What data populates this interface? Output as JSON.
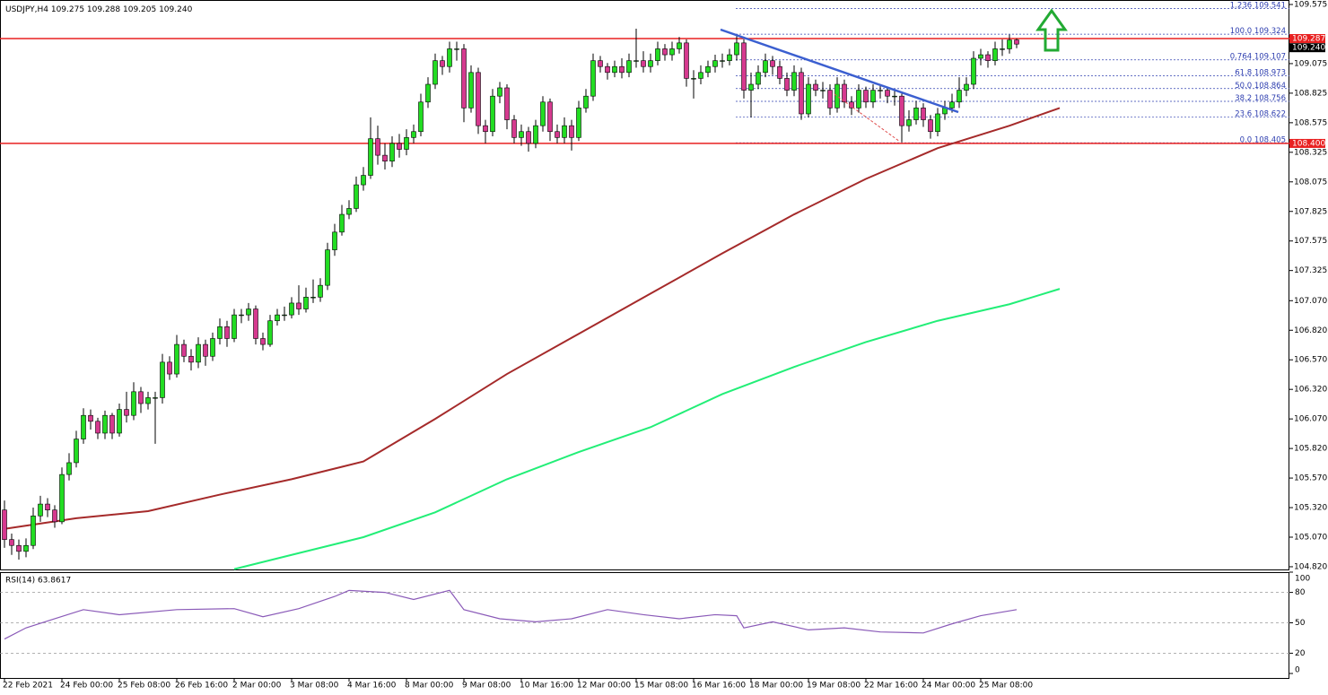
{
  "chart_data": {
    "type": "candlestick",
    "title": "USDJPY,H4",
    "quote": "109.275 109.288 109.205 109.240",
    "categories": [
      "22 Feb 2021",
      null,
      null,
      null,
      null,
      null,
      null,
      null,
      "24 Feb 00:00",
      null,
      null,
      null,
      null,
      null,
      null,
      null,
      "25 Feb 08:00",
      null,
      null,
      null,
      null,
      null,
      null,
      null,
      "26 Feb 16:00",
      null,
      null,
      null,
      null,
      null,
      null,
      null,
      "2 Mar 00:00",
      null,
      null,
      null,
      null,
      null,
      null,
      null,
      "3 Mar 08:00",
      null,
      null,
      null,
      null,
      null,
      null,
      null,
      "4 Mar 16:00",
      null,
      null,
      null,
      null,
      null,
      null,
      null,
      "8 Mar 00:00",
      null,
      null,
      null,
      null,
      null,
      null,
      null,
      "9 Mar 08:00",
      null,
      null,
      null,
      null,
      null,
      null,
      null,
      "10 Mar 16:00",
      null,
      null,
      null,
      null,
      null,
      null,
      null,
      "12 Mar 00:00",
      null,
      null,
      null,
      null,
      null,
      null,
      null,
      "15 Mar 08:00",
      null,
      null,
      null,
      null,
      null,
      null,
      null,
      "16 Mar 16:00",
      null,
      null,
      null,
      null,
      null,
      null,
      null,
      "18 Mar 00:00",
      null,
      null,
      null,
      null,
      null,
      null,
      null,
      "19 Mar 08:00",
      null,
      null,
      null,
      null,
      null,
      null,
      null,
      "22 Mar 16:00",
      null,
      null,
      null,
      null,
      null,
      null,
      null,
      "24 Mar 00:00",
      null,
      null,
      null,
      null,
      null,
      null,
      null,
      "25 Mar 08:00",
      null,
      null,
      null,
      null,
      null
    ],
    "open": [
      105.3,
      105.05,
      105.0,
      104.95,
      105.0,
      105.25,
      105.35,
      105.3,
      105.2,
      105.6,
      105.7,
      105.9,
      106.1,
      106.05,
      105.95,
      106.1,
      105.95,
      106.15,
      106.1,
      106.3,
      106.2,
      106.25,
      106.25,
      106.55,
      106.45,
      106.7,
      106.6,
      106.55,
      106.7,
      106.6,
      106.75,
      106.85,
      106.75,
      106.95,
      106.95,
      107.0,
      106.75,
      106.7,
      106.9,
      106.95,
      106.95,
      107.05,
      107.0,
      107.1,
      107.1,
      107.2,
      107.5,
      107.65,
      107.8,
      107.85,
      108.05,
      108.13,
      108.44,
      108.3,
      108.25,
      108.4,
      108.35,
      108.45,
      108.5,
      108.75,
      108.9,
      109.1,
      109.05,
      109.2,
      109.2,
      108.7,
      109.0,
      108.55,
      108.5,
      108.8,
      108.87,
      108.6,
      108.45,
      108.5,
      108.4,
      108.55,
      108.75,
      108.5,
      108.45,
      108.55,
      108.45,
      108.7,
      108.8,
      109.1,
      109.05,
      109.0,
      109.05,
      109.0,
      109.1,
      109.1,
      109.05,
      109.1,
      109.2,
      109.15,
      109.2,
      109.25,
      108.95,
      108.95,
      109.0,
      109.05,
      109.1,
      109.1,
      109.15,
      109.25,
      108.85,
      108.9,
      109.0,
      109.1,
      109.05,
      108.95,
      108.85,
      109.0,
      108.65,
      108.9,
      108.85,
      108.85,
      108.7,
      108.9,
      108.75,
      108.7,
      108.85,
      108.75,
      108.85,
      108.85,
      108.8,
      108.8,
      108.55,
      108.6,
      108.7,
      108.6,
      108.5,
      108.65,
      108.7,
      108.75,
      108.85,
      108.9,
      109.12,
      109.15,
      109.1,
      109.2,
      109.2,
      109.275
    ],
    "high": [
      105.38,
      105.1,
      105.05,
      105.06,
      105.32,
      105.42,
      105.4,
      105.34,
      105.66,
      105.78,
      105.97,
      106.16,
      106.15,
      106.08,
      106.14,
      106.12,
      106.2,
      106.3,
      106.38,
      106.34,
      106.3,
      106.3,
      106.62,
      106.6,
      106.78,
      106.74,
      106.66,
      106.76,
      106.74,
      106.8,
      106.92,
      106.9,
      107.0,
      107.0,
      107.05,
      107.03,
      106.8,
      106.95,
      107.0,
      107.02,
      107.1,
      107.2,
      107.18,
      107.25,
      107.26,
      107.56,
      107.72,
      107.88,
      107.92,
      108.12,
      108.2,
      108.62,
      108.55,
      108.4,
      108.46,
      108.48,
      108.52,
      108.56,
      108.82,
      108.96,
      109.16,
      109.14,
      109.26,
      109.26,
      109.24,
      109.06,
      109.04,
      108.6,
      108.86,
      108.92,
      108.9,
      108.64,
      108.56,
      108.54,
      108.6,
      108.8,
      108.78,
      108.56,
      108.62,
      108.6,
      108.76,
      108.86,
      109.16,
      109.14,
      109.08,
      109.1,
      109.12,
      109.16,
      109.37,
      109.18,
      109.16,
      109.26,
      109.24,
      109.26,
      109.3,
      109.28,
      109.02,
      109.06,
      109.1,
      109.15,
      109.16,
      109.2,
      109.32,
      109.28,
      109.0,
      109.06,
      109.16,
      109.14,
      109.1,
      109.0,
      109.06,
      109.04,
      108.96,
      108.94,
      108.92,
      108.9,
      108.96,
      108.94,
      108.8,
      108.9,
      108.88,
      108.9,
      108.9,
      108.88,
      108.86,
      108.82,
      108.68,
      108.76,
      108.74,
      108.64,
      108.7,
      108.76,
      108.82,
      108.96,
      108.96,
      109.18,
      109.2,
      109.18,
      109.26,
      109.28,
      109.32,
      109.288
    ],
    "low": [
      104.98,
      104.92,
      104.88,
      104.9,
      104.97,
      105.2,
      105.24,
      105.15,
      105.18,
      105.55,
      105.66,
      105.86,
      105.98,
      105.9,
      105.9,
      105.9,
      105.92,
      106.04,
      106.06,
      106.12,
      106.15,
      105.86,
      106.2,
      106.4,
      106.42,
      106.55,
      106.48,
      106.5,
      106.52,
      106.56,
      106.7,
      106.68,
      106.72,
      106.88,
      106.9,
      106.7,
      106.65,
      106.68,
      106.86,
      106.9,
      106.92,
      106.95,
      106.97,
      107.05,
      107.06,
      107.16,
      107.45,
      107.62,
      107.76,
      107.82,
      108.0,
      108.1,
      108.22,
      108.18,
      108.2,
      108.28,
      108.3,
      108.4,
      108.46,
      108.7,
      108.86,
      108.98,
      109.0,
      109.1,
      108.58,
      108.66,
      108.48,
      108.4,
      108.46,
      108.74,
      108.52,
      108.4,
      108.38,
      108.33,
      108.36,
      108.5,
      108.42,
      108.4,
      108.4,
      108.34,
      108.42,
      108.66,
      108.76,
      109.0,
      108.94,
      108.96,
      108.95,
      108.96,
      109.04,
      109.0,
      109.0,
      109.06,
      109.1,
      109.1,
      109.16,
      108.88,
      108.78,
      108.9,
      108.96,
      109.0,
      109.04,
      109.06,
      109.1,
      108.78,
      108.62,
      108.86,
      108.96,
      108.98,
      108.9,
      108.8,
      108.8,
      108.6,
      108.62,
      108.8,
      108.78,
      108.64,
      108.66,
      108.7,
      108.64,
      108.66,
      108.7,
      108.7,
      108.78,
      108.74,
      108.72,
      108.41,
      108.5,
      108.56,
      108.54,
      108.44,
      108.46,
      108.6,
      108.66,
      108.7,
      108.8,
      108.86,
      109.06,
      109.04,
      109.06,
      109.14,
      109.16,
      109.205
    ],
    "close": [
      105.05,
      105.0,
      104.95,
      105.0,
      105.25,
      105.35,
      105.3,
      105.2,
      105.6,
      105.7,
      105.9,
      106.1,
      106.05,
      105.95,
      106.1,
      105.95,
      106.15,
      106.1,
      106.3,
      106.2,
      106.25,
      106.25,
      106.55,
      106.45,
      106.7,
      106.6,
      106.55,
      106.7,
      106.6,
      106.75,
      106.85,
      106.75,
      106.95,
      106.95,
      107.0,
      106.75,
      106.7,
      106.9,
      106.95,
      106.95,
      107.05,
      107.0,
      107.1,
      107.1,
      107.2,
      107.5,
      107.65,
      107.8,
      107.85,
      108.05,
      108.13,
      108.44,
      108.3,
      108.25,
      108.4,
      108.35,
      108.45,
      108.5,
      108.75,
      108.9,
      109.1,
      109.05,
      109.2,
      109.2,
      108.7,
      109.0,
      108.55,
      108.5,
      108.8,
      108.87,
      108.6,
      108.45,
      108.5,
      108.4,
      108.55,
      108.75,
      108.5,
      108.45,
      108.55,
      108.45,
      108.7,
      108.8,
      109.1,
      109.05,
      109.0,
      109.05,
      109.0,
      109.1,
      109.1,
      109.05,
      109.1,
      109.2,
      109.15,
      109.2,
      109.25,
      108.95,
      108.95,
      109.0,
      109.05,
      109.1,
      109.1,
      109.15,
      109.25,
      108.85,
      108.9,
      109.0,
      109.1,
      109.05,
      108.95,
      108.85,
      109.0,
      108.65,
      108.9,
      108.85,
      108.85,
      108.7,
      108.9,
      108.75,
      108.7,
      108.85,
      108.75,
      108.85,
      108.85,
      108.8,
      108.8,
      108.55,
      108.6,
      108.7,
      108.6,
      108.5,
      108.65,
      108.7,
      108.75,
      108.85,
      108.9,
      109.12,
      109.15,
      109.1,
      109.2,
      109.2,
      109.275,
      109.24
    ],
    "up_color": "#22dd22",
    "down_color": "#d6398f",
    "lines": [
      {
        "color": "#a52a2a",
        "x": [
          0,
          10,
          20,
          30,
          40,
          50,
          60,
          70,
          80,
          90,
          100,
          110,
          120,
          130,
          140,
          147
        ],
        "values": [
          105.14,
          105.23,
          105.29,
          105.43,
          105.56,
          105.71,
          106.07,
          106.45,
          106.79,
          107.13,
          107.47,
          107.8,
          108.1,
          108.36,
          108.55,
          108.7
        ]
      },
      {
        "color": "#22ee77",
        "x": [
          32,
          40,
          50,
          60,
          70,
          80,
          90,
          100,
          110,
          120,
          130,
          140,
          147
        ],
        "values": [
          104.8,
          104.92,
          105.07,
          105.28,
          105.56,
          105.79,
          106.0,
          106.28,
          106.51,
          106.72,
          106.9,
          107.04,
          107.17
        ]
      }
    ],
    "hlines": [
      {
        "value": 109.287,
        "label": "109.287"
      },
      {
        "value": 108.4,
        "label": "108.400"
      }
    ],
    "hline_color": "#e82020",
    "last_price": {
      "value": 109.24,
      "label": "109.240"
    },
    "fib": [
      {
        "ratio": "1.236",
        "price": 109.541
      },
      {
        "ratio": "100.0",
        "price": 109.324
      },
      {
        "ratio": "0.764",
        "price": 109.107
      },
      {
        "ratio": "61.8",
        "price": 108.973
      },
      {
        "ratio": "50.0",
        "price": 108.864
      },
      {
        "ratio": "38.2",
        "price": 108.756
      },
      {
        "ratio": "23.6",
        "price": 108.622
      },
      {
        "ratio": "0.0",
        "price": 108.405
      }
    ],
    "ylim": [
      104.797,
      109.613
    ],
    "yticks": [
      109.575,
      109.075,
      108.825,
      108.575,
      108.325,
      108.075,
      107.825,
      107.575,
      107.325,
      {
        "value": 107.07,
        "label": "107.070"
      },
      {
        "value": 106.82,
        "label": "106.820"
      },
      {
        "value": 106.57,
        "label": "106.570"
      },
      {
        "value": 106.32,
        "label": "106.320"
      },
      {
        "value": 106.07,
        "label": "106.070"
      },
      {
        "value": 105.82,
        "label": "105.820"
      },
      {
        "value": 105.57,
        "label": "105.570"
      },
      {
        "value": 105.32,
        "label": "105.320"
      },
      {
        "value": 105.07,
        "label": "105.070"
      },
      {
        "value": 104.82,
        "label": "104.820"
      }
    ],
    "rsi": {
      "label": "RSI(14) 63.8617",
      "color": "#8a5ab8",
      "x": [
        0,
        3,
        7,
        11,
        16,
        24,
        32,
        36,
        41,
        46,
        48,
        53,
        57,
        62,
        64,
        69,
        74,
        79,
        84,
        89,
        94,
        99,
        102,
        103,
        107,
        112,
        117,
        122,
        128,
        132,
        136,
        141
      ],
      "values": [
        34,
        45,
        54,
        63,
        58,
        63,
        64,
        56,
        64,
        76,
        82,
        80,
        73,
        82,
        63,
        54,
        51,
        54,
        63,
        58,
        54,
        58,
        57,
        45,
        51,
        43,
        45,
        41,
        40,
        49,
        57,
        63
      ],
      "ylim": [
        0,
        100
      ],
      "yticks": [
        100,
        80,
        50,
        20,
        0
      ]
    }
  }
}
